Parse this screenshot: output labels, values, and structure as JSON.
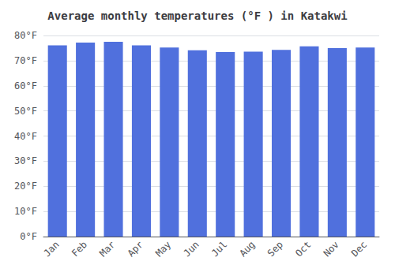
{
  "chart_data": {
    "type": "bar",
    "title": "Average monthly temperatures (°F ) in Katakwi",
    "categories": [
      "Jan",
      "Feb",
      "Mar",
      "Apr",
      "May",
      "Jun",
      "Jul",
      "Aug",
      "Sep",
      "Oct",
      "Nov",
      "Dec"
    ],
    "values": [
      76.1,
      77.2,
      77.5,
      76.1,
      75.2,
      74.1,
      73.4,
      73.6,
      74.3,
      75.7,
      75.0,
      75.2
    ],
    "ylim": [
      0,
      80
    ],
    "yticks": [
      {
        "value": 0,
        "label": "0°F"
      },
      {
        "value": 10,
        "label": "10°F"
      },
      {
        "value": 20,
        "label": "20°F"
      },
      {
        "value": 30,
        "label": "30°F"
      },
      {
        "value": 40,
        "label": "40°F"
      },
      {
        "value": 50,
        "label": "50°F"
      },
      {
        "value": 60,
        "label": "60°F"
      },
      {
        "value": 70,
        "label": "70°F"
      },
      {
        "value": 80,
        "label": "80°F"
      }
    ],
    "grid": true
  }
}
